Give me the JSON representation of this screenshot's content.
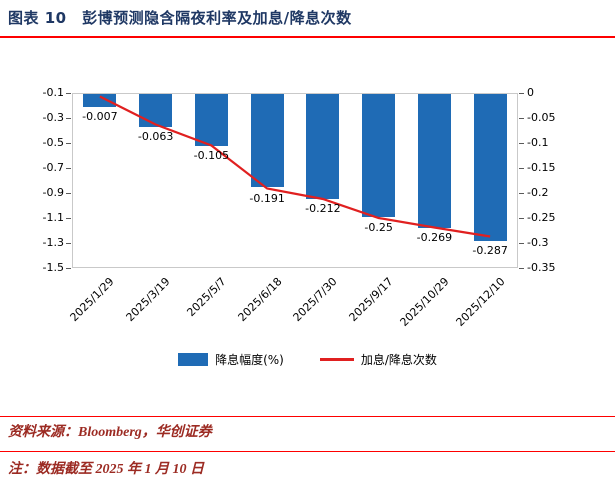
{
  "header": {
    "title": "图表 10　彭博预测隐含隔夜利率及加息/降息次数"
  },
  "footer": {
    "source": "资料来源：Bloomberg，华创证券",
    "note": "注：数据截至 2025 年 1 月 10 日"
  },
  "colors": {
    "title": "#1f3864",
    "rule": "#fe0000",
    "bar": "#1f6bb5",
    "line": "#e02020",
    "footnote": "#9c2b23",
    "axis": "#595959"
  },
  "chart_data": {
    "type": "combo",
    "title": "彭博预测隐含隔夜利率及加息/降息次数",
    "categories": [
      "2025/1/29",
      "2025/3/19",
      "2025/5/7",
      "2025/6/18",
      "2025/7/30",
      "2025/9/17",
      "2025/10/29",
      "2025/12/10"
    ],
    "series": [
      {
        "name": "降息幅度(%)",
        "type": "bar",
        "axis": "left",
        "values": [
          -0.21,
          -0.37,
          -0.52,
          -0.85,
          -0.95,
          -1.09,
          -1.18,
          -1.28
        ]
      },
      {
        "name": "加息/降息次数",
        "type": "line",
        "axis": "right",
        "values": [
          -0.007,
          -0.063,
          -0.105,
          -0.191,
          -0.212,
          -0.25,
          -0.269,
          -0.287
        ]
      }
    ],
    "data_labels": [
      "-0.007",
      "-0.063",
      "-0.105",
      "-0.191",
      "-0.212",
      "-0.25",
      "-0.269",
      "-0.287"
    ],
    "left_axis": {
      "min": -1.5,
      "max": -0.1,
      "ticks": [
        "-0.1",
        "-0.3",
        "-0.5",
        "-0.7",
        "-0.9",
        "-1.1",
        "-1.3",
        "-1.5"
      ]
    },
    "right_axis": {
      "min": -0.35,
      "max": 0,
      "ticks": [
        "0",
        "-0.05",
        "-0.1",
        "-0.15",
        "-0.2",
        "-0.25",
        "-0.3",
        "-0.35"
      ]
    },
    "legend_position": "bottom",
    "grid": false
  }
}
